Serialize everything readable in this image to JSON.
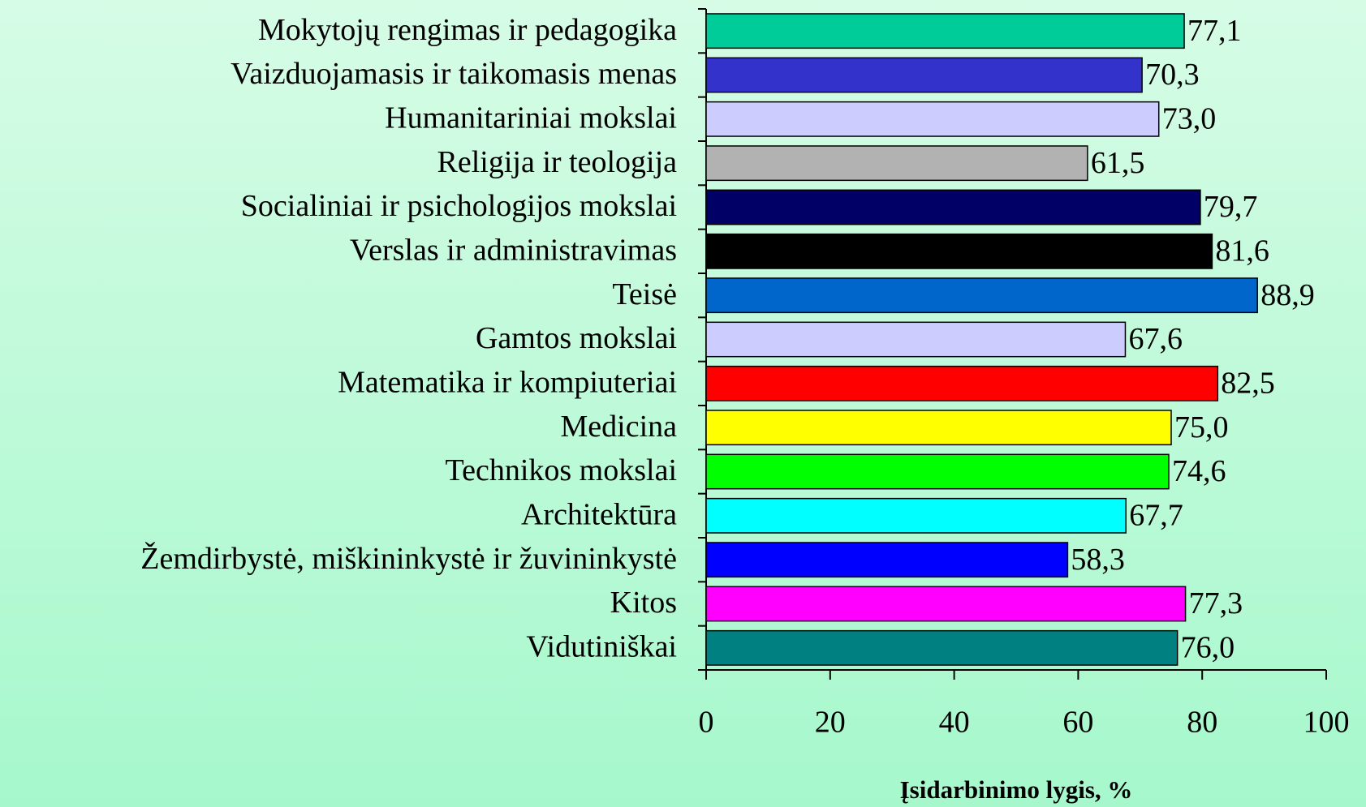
{
  "chart_data": {
    "type": "bar",
    "orientation": "horizontal",
    "x_label": "Įsidarbinimo lygis, %",
    "categories": [
      "Mokytojų rengimas ir pedagogika",
      "Vaizduojamasis ir taikomasis menas",
      "Humanitariniai mokslai",
      "Religija ir teologija",
      "Socialiniai ir psichologijos mokslai",
      "Verslas ir administravimas",
      "Teisė",
      "Gamtos mokslai",
      "Matematika ir kompiuteriai",
      "Medicina",
      "Technikos mokslai",
      "Architektūra",
      "Žemdirbystė, miškininkystė ir žuvininkystė",
      "Kitos",
      "Vidutiniškai"
    ],
    "values": [
      77.1,
      70.3,
      73.0,
      61.5,
      79.7,
      81.6,
      88.9,
      67.6,
      82.5,
      75.0,
      74.6,
      67.7,
      58.3,
      77.3,
      76.0
    ],
    "value_labels": [
      "77,1",
      "70,3",
      "73,0",
      "61,5",
      "79,7",
      "81,6",
      "88,9",
      "67,6",
      "82,5",
      "75,0",
      "74,6",
      "67,7",
      "58,3",
      "77,3",
      "76,0"
    ],
    "colors": [
      "#00cc99",
      "#3333cc",
      "#ccccff",
      "#b2b2b2",
      "#000066",
      "#000000",
      "#0066cc",
      "#ccccff",
      "#ff0000",
      "#ffff00",
      "#00ff00",
      "#00ffff",
      "#0000ff",
      "#ff00ff",
      "#008080"
    ],
    "xlim": [
      0,
      100
    ],
    "xticks": [
      0,
      20,
      40,
      60,
      80,
      100
    ]
  }
}
